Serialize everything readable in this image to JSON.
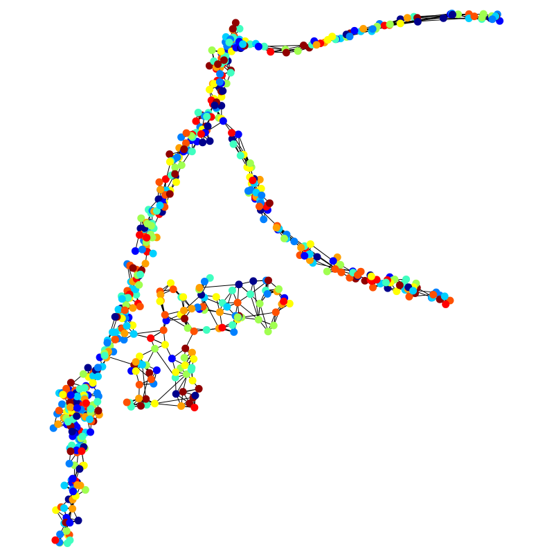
{
  "node_colors": [
    "#00008b",
    "#0000ff",
    "#0080ff",
    "#00d0ff",
    "#40ffc0",
    "#a0ff50",
    "#ffff00",
    "#ffa000",
    "#ff5000",
    "#ff0000",
    "#900000"
  ]
}
